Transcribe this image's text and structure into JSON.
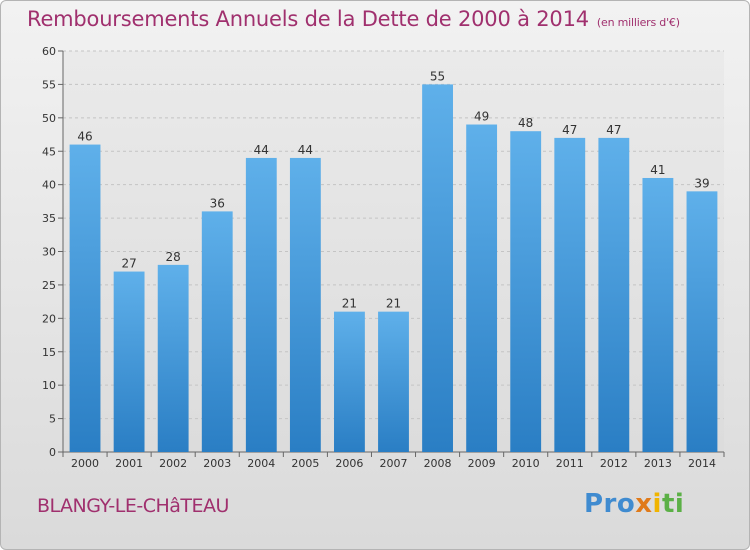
{
  "header": {
    "title": "Remboursements Annuels de la Dette de 2000 à 2014",
    "subtitle": "(en milliers d'€)"
  },
  "footer": {
    "commune": "BLANGY-LE-CHâTEAU",
    "logo": {
      "part1": "Pro",
      "part2": "x",
      "part3": "i",
      "part4": "ti"
    }
  },
  "colors": {
    "title": "#a0306e",
    "bar_top": "#5fb0ea",
    "bar_bottom": "#2a7ec4"
  },
  "chart_data": {
    "type": "bar",
    "title": "Remboursements Annuels de la Dette de 2000 à 2014",
    "subtitle": "(en milliers d'€)",
    "xlabel": "",
    "ylabel": "",
    "categories": [
      "2000",
      "2001",
      "2002",
      "2003",
      "2004",
      "2005",
      "2006",
      "2007",
      "2008",
      "2009",
      "2010",
      "2011",
      "2012",
      "2013",
      "2014"
    ],
    "values": [
      46,
      27,
      28,
      36,
      44,
      44,
      21,
      21,
      55,
      49,
      48,
      47,
      47,
      41,
      39
    ],
    "ylim": [
      0,
      60
    ],
    "yticks": [
      0,
      5,
      10,
      15,
      20,
      25,
      30,
      35,
      40,
      45,
      50,
      55,
      60
    ],
    "grid": true,
    "data_labels": true
  }
}
